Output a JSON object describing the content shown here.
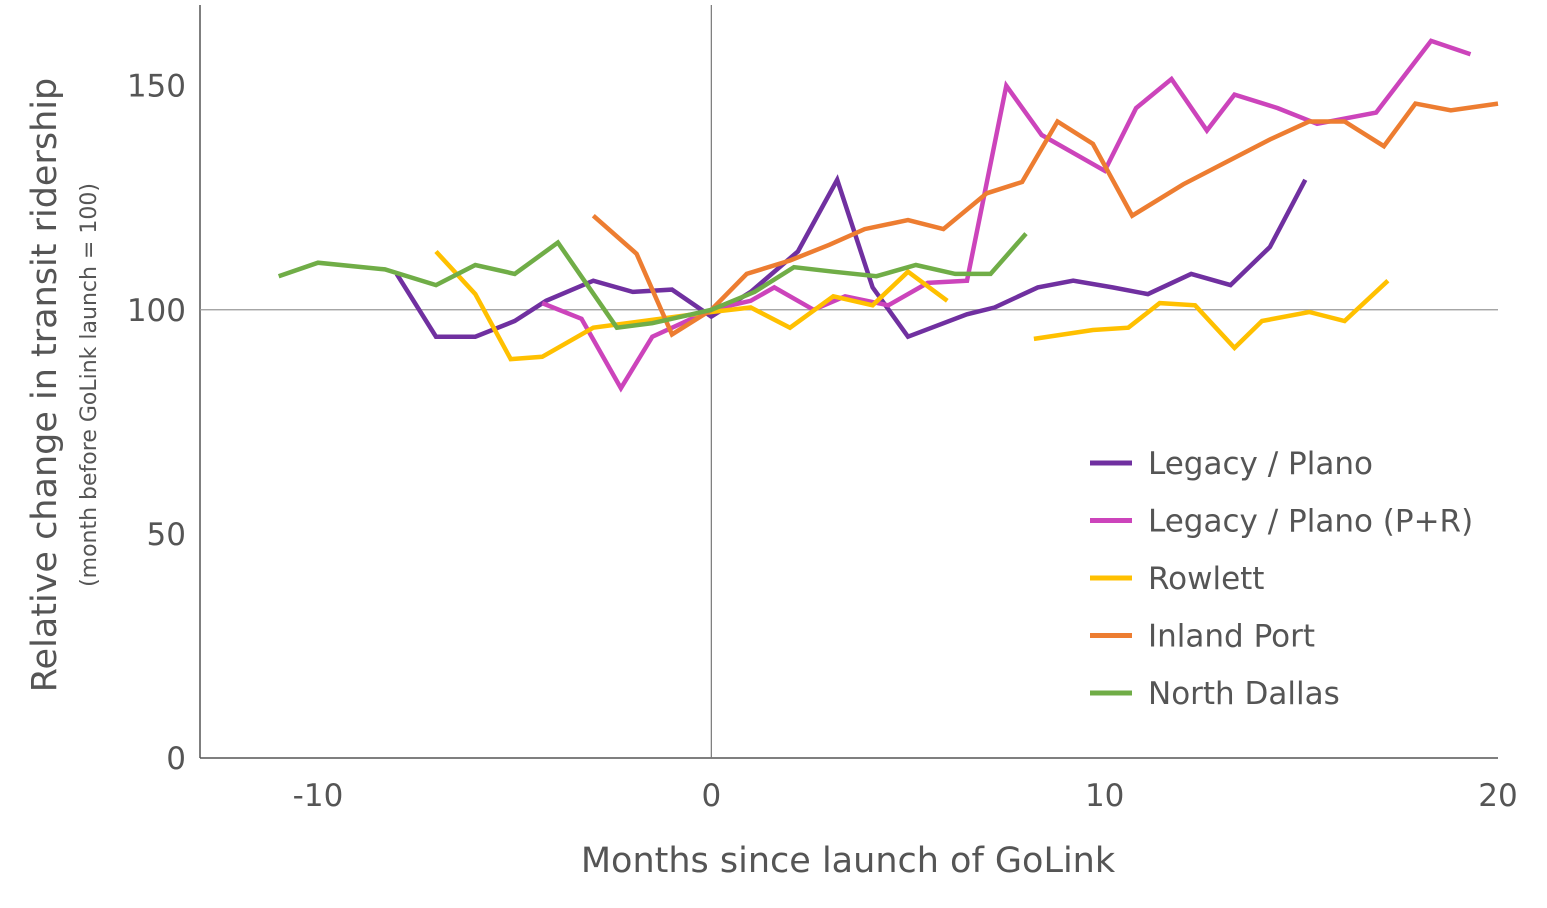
{
  "chart_data": {
    "type": "line",
    "xlabel": "Months since launch of GoLink",
    "ylabel": "Relative change in transit ridership",
    "ylabel_note": "(month before GoLink launch = 100)",
    "xlim": [
      -13,
      20
    ],
    "ylim": [
      0,
      168
    ],
    "x_ticks": [
      {
        "value": -10,
        "label": "-10"
      },
      {
        "value": 0,
        "label": "0"
      },
      {
        "value": 10,
        "label": "10"
      },
      {
        "value": 20,
        "label": "20"
      }
    ],
    "y_ticks": [
      {
        "value": 0,
        "label": "0"
      },
      {
        "value": 50,
        "label": "50"
      },
      {
        "value": 100,
        "label": "100"
      },
      {
        "value": 150,
        "label": "150"
      }
    ],
    "reference_lines": {
      "x": 0,
      "y": 100
    },
    "legend_position": "bottom-right",
    "series": [
      {
        "name": "Legacy / Plano",
        "color": "#7030A0",
        "segments": [
          [
            [
              -8,
              108
            ],
            [
              -7,
              94
            ],
            [
              -6,
              94
            ],
            [
              -5,
              97.5
            ],
            [
              -4.2,
              102
            ],
            [
              -3,
              106.5
            ],
            [
              -2,
              104
            ],
            [
              -1,
              104.5
            ],
            [
              0,
              98.5
            ],
            [
              1,
              104
            ],
            [
              2.2,
              113
            ],
            [
              3.2,
              129
            ],
            [
              4.1,
              105
            ],
            [
              5,
              94
            ],
            [
              6.5,
              99
            ],
            [
              7.2,
              100.5
            ],
            [
              8.3,
              105
            ],
            [
              9.2,
              106.5
            ],
            [
              10.2,
              105
            ],
            [
              11.1,
              103.5
            ],
            [
              12.2,
              108
            ],
            [
              13.2,
              105.5
            ],
            [
              14.2,
              114
            ],
            [
              15.1,
              129
            ]
          ]
        ]
      },
      {
        "name": "Legacy / Plano (P+R)",
        "color": "#CC44BB",
        "segments": [
          [
            [
              -4.3,
              101.5
            ],
            [
              -3.3,
              98
            ],
            [
              -2.3,
              82.5
            ],
            [
              -1.5,
              94
            ],
            [
              0,
              100
            ],
            [
              1,
              102
            ],
            [
              1.6,
              105
            ],
            [
              2.6,
              100
            ],
            [
              3.4,
              103
            ],
            [
              4.5,
              101
            ],
            [
              5.5,
              106
            ],
            [
              6.5,
              106.5
            ],
            [
              7.5,
              150
            ],
            [
              8.4,
              139
            ],
            [
              10,
              131
            ],
            [
              10.8,
              145
            ],
            [
              11.7,
              151.5
            ],
            [
              12.6,
              140
            ],
            [
              13.3,
              148
            ],
            [
              14.4,
              145
            ],
            [
              15.4,
              141.5
            ],
            [
              16.9,
              144
            ],
            [
              18.3,
              160
            ],
            [
              19.3,
              157
            ]
          ]
        ]
      },
      {
        "name": "Rowlett",
        "color": "#FFC000",
        "segments": [
          [
            [
              -7,
              113
            ],
            [
              -6,
              103.5
            ],
            [
              -5.1,
              89
            ],
            [
              -4.3,
              89.5
            ],
            [
              -3,
              96
            ],
            [
              0,
              99.5
            ],
            [
              1,
              100.5
            ],
            [
              2,
              96
            ],
            [
              3.1,
              103
            ],
            [
              4.1,
              101
            ],
            [
              5,
              108.5
            ],
            [
              6,
              102
            ]
          ],
          [
            [
              8.2,
              93.5
            ],
            [
              9.7,
              95.5
            ],
            [
              10.6,
              96
            ],
            [
              11.4,
              101.5
            ],
            [
              12.3,
              101
            ],
            [
              13.3,
              91.5
            ],
            [
              14,
              97.5
            ],
            [
              15.2,
              99.5
            ],
            [
              16.1,
              97.5
            ],
            [
              17.2,
              106.5
            ]
          ]
        ]
      },
      {
        "name": "Inland Port",
        "color": "#ED7D31",
        "segments": [
          [
            [
              -3,
              121
            ],
            [
              -1.9,
              112.5
            ],
            [
              -1,
              94.5
            ],
            [
              0,
              100
            ],
            [
              0.9,
              108
            ],
            [
              2,
              111
            ],
            [
              3,
              114.5
            ],
            [
              3.9,
              118
            ],
            [
              5,
              120
            ],
            [
              5.9,
              118
            ],
            [
              7,
              126
            ],
            [
              7.9,
              128.5
            ],
            [
              8.8,
              142
            ],
            [
              9.7,
              137
            ],
            [
              10.7,
              121
            ],
            [
              12,
              128
            ],
            [
              13.1,
              133
            ],
            [
              14.2,
              138
            ],
            [
              15.2,
              142
            ],
            [
              16.1,
              142
            ],
            [
              17.1,
              136.5
            ],
            [
              17.9,
              146
            ],
            [
              18.8,
              144.5
            ],
            [
              20,
              146
            ]
          ]
        ]
      },
      {
        "name": "North Dallas",
        "color": "#70AD47",
        "segments": [
          [
            [
              -11,
              107.5
            ],
            [
              -10,
              110.5
            ],
            [
              -8.3,
              109
            ],
            [
              -7,
              105.5
            ],
            [
              -6,
              110
            ],
            [
              -5,
              108
            ],
            [
              -3.9,
              115
            ],
            [
              -2.4,
              96
            ],
            [
              -1.5,
              97
            ],
            [
              -0.5,
              99
            ],
            [
              0,
              100
            ],
            [
              1.1,
              104
            ],
            [
              2.1,
              109.5
            ],
            [
              3.1,
              108.5
            ],
            [
              4.2,
              107.5
            ],
            [
              5.2,
              110
            ],
            [
              6.2,
              108
            ],
            [
              7.1,
              108
            ],
            [
              8,
              117
            ]
          ]
        ]
      }
    ]
  }
}
